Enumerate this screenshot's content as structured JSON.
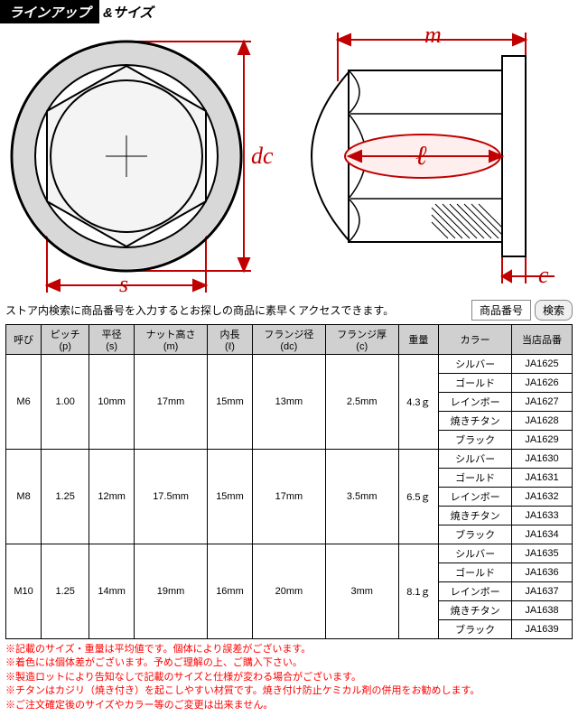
{
  "header": {
    "dark": "ラインアップ",
    "light": "&サイズ"
  },
  "diagram": {
    "stroke_red": "#c00000",
    "stroke_black": "#000000",
    "fill_hatch": "#e8e8e8",
    "labels": {
      "dc": "dc",
      "s": "s",
      "m": "m",
      "l": "ℓ",
      "c": "c"
    }
  },
  "search": {
    "text": "ストア内検索に商品番号を入力するとお探しの商品に素早くアクセスできます。",
    "field": "商品番号",
    "button": "検索"
  },
  "table": {
    "headers": [
      "呼び",
      "ピッチ\n(p)",
      "平径\n(s)",
      "ナット高さ\n(m)",
      "内長\n(ℓ)",
      "フランジ径\n(dc)",
      "フランジ厚\n(c)",
      "重量",
      "カラー",
      "当店品番"
    ],
    "groups": [
      {
        "呼び": "M6",
        "p": "1.00",
        "s": "10mm",
        "m": "17mm",
        "l": "15mm",
        "dc": "13mm",
        "c": "2.5mm",
        "w": "4.3ｇ",
        "colors": [
          "シルバー",
          "ゴールド",
          "レインボー",
          "焼きチタン",
          "ブラック"
        ],
        "codes": [
          "JA1625",
          "JA1626",
          "JA1627",
          "JA1628",
          "JA1629"
        ]
      },
      {
        "呼び": "M8",
        "p": "1.25",
        "s": "12mm",
        "m": "17.5mm",
        "l": "15mm",
        "dc": "17mm",
        "c": "3.5mm",
        "w": "6.5ｇ",
        "colors": [
          "シルバー",
          "ゴールド",
          "レインボー",
          "焼きチタン",
          "ブラック"
        ],
        "codes": [
          "JA1630",
          "JA1631",
          "JA1632",
          "JA1633",
          "JA1634"
        ]
      },
      {
        "呼び": "M10",
        "p": "1.25",
        "s": "14mm",
        "m": "19mm",
        "l": "16mm",
        "dc": "20mm",
        "c": "3mm",
        "w": "8.1ｇ",
        "colors": [
          "シルバー",
          "ゴールド",
          "レインボー",
          "焼きチタン",
          "ブラック"
        ],
        "codes": [
          "JA1635",
          "JA1636",
          "JA1637",
          "JA1638",
          "JA1639"
        ]
      }
    ]
  },
  "notes": [
    "※記載のサイズ・重量は平均値です。個体により誤差がございます。",
    "※着色には個体差がございます。予めご理解の上、ご購入下さい。",
    "※製造ロットにより告知なしで記載のサイズと仕様が変わる場合がございます。",
    "※チタンはカジリ（焼き付き）を起こしやすい材質です。焼き付け防止ケミカル剤の併用をお勧めします。",
    "※ご注文確定後のサイズやカラー等のご変更は出来ません。"
  ],
  "style": {
    "note_color": "#ff0000",
    "th_bg": "#d0d0d0",
    "border_color": "#000000",
    "font_size_table": 11,
    "font_size_notes": 11
  }
}
